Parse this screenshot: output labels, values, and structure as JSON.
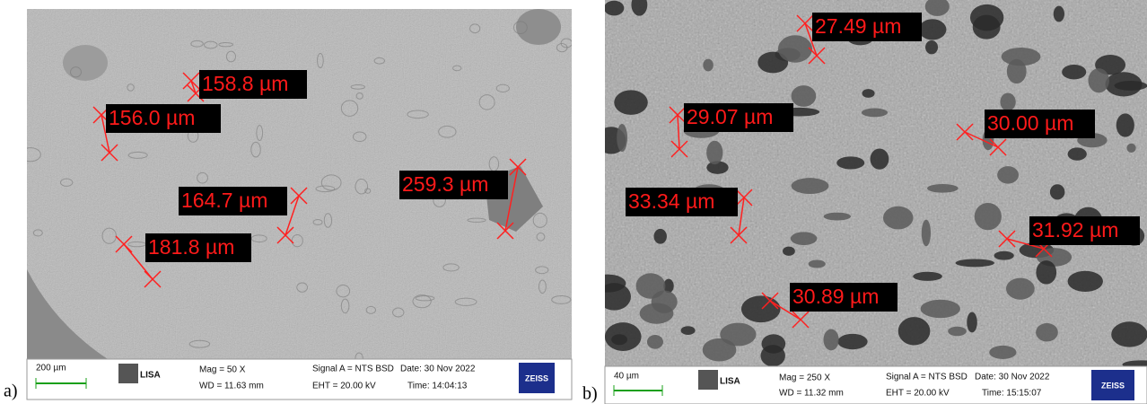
{
  "panels": [
    {
      "label": "a)",
      "measurements": [
        "158.8 µm",
        "156.0 µm",
        "164.7 µm",
        "181.8 µm",
        "259.3 µm"
      ],
      "info": {
        "scale": "200 µm",
        "lisa": "LISA",
        "mag": "Mag =    50 X",
        "wd": "WD = 11.63 mm",
        "signal": "Signal A = NTS BSD",
        "date": "Date: 30 Nov 2022",
        "eht": "EHT = 20.00 kV",
        "time": "Time: 14:04:13",
        "logo": "ZEISS"
      }
    },
    {
      "label": "b)",
      "measurements": [
        "27.49 µm",
        "29.07 µm",
        "30.00 µm",
        "33.34 µm",
        "31.92 µm",
        "30.89 µm"
      ],
      "info": {
        "scale": "40 µm",
        "lisa": "LISA",
        "mag": "Mag =   250 X",
        "wd": "WD = 11.32 mm",
        "signal": "Signal A = NTS BSD",
        "date": "Date: 30 Nov 2022",
        "eht": "EHT = 20.00 kV",
        "time": "Time: 15:15:07",
        "logo": "ZEISS"
      }
    }
  ]
}
